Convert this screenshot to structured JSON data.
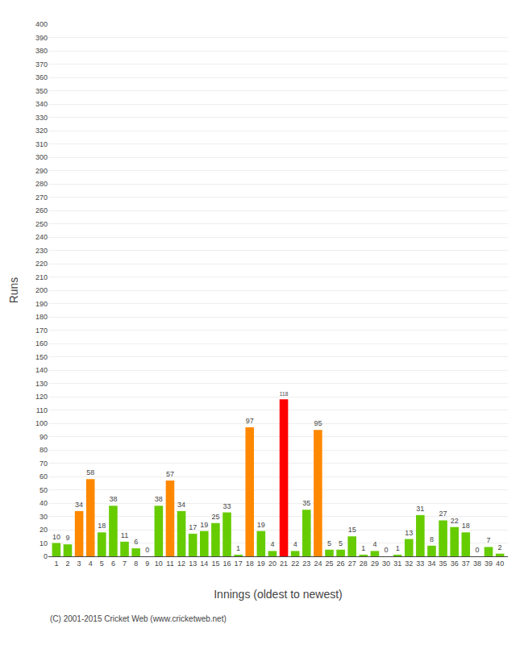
{
  "chart_data": {
    "type": "bar",
    "xlabel": "Innings (oldest to newest)",
    "ylabel": "Runs",
    "x": [
      1,
      2,
      3,
      4,
      5,
      6,
      7,
      8,
      9,
      10,
      11,
      12,
      13,
      14,
      15,
      16,
      17,
      18,
      19,
      20,
      21,
      22,
      23,
      24,
      25,
      26,
      27,
      28,
      29,
      30,
      31,
      32,
      33,
      34,
      35,
      36,
      37,
      38,
      39,
      40
    ],
    "values": [
      10,
      9,
      34,
      58,
      18,
      38,
      11,
      6,
      0,
      38,
      57,
      34,
      17,
      19,
      25,
      33,
      1,
      97,
      19,
      4,
      118,
      4,
      35,
      95,
      5,
      5,
      15,
      1,
      4,
      0,
      1,
      13,
      31,
      8,
      27,
      22,
      18,
      0,
      7,
      2
    ],
    "colors": [
      "#66cc00",
      "#66cc00",
      "#ff8800",
      "#ff8800",
      "#66cc00",
      "#66cc00",
      "#66cc00",
      "#66cc00",
      "#66cc00",
      "#66cc00",
      "#ff8800",
      "#66cc00",
      "#66cc00",
      "#66cc00",
      "#66cc00",
      "#66cc00",
      "#66cc00",
      "#ff8800",
      "#66cc00",
      "#66cc00",
      "#ff0000",
      "#66cc00",
      "#66cc00",
      "#ff8800",
      "#66cc00",
      "#66cc00",
      "#66cc00",
      "#66cc00",
      "#66cc00",
      "#66cc00",
      "#66cc00",
      "#66cc00",
      "#66cc00",
      "#66cc00",
      "#66cc00",
      "#66cc00",
      "#66cc00",
      "#66cc00",
      "#66cc00",
      "#66cc00"
    ],
    "xlim": [
      0.3,
      40.7
    ],
    "xticks": [
      1,
      2,
      3,
      4,
      5,
      6,
      7,
      8,
      9,
      10,
      11,
      12,
      13,
      14,
      15,
      16,
      17,
      18,
      19,
      20,
      21,
      22,
      23,
      24,
      25,
      26,
      27,
      28,
      29,
      30,
      31,
      32,
      33,
      34,
      35,
      36,
      37,
      38,
      39,
      40
    ],
    "ylim": [
      0,
      400
    ],
    "yticks": [
      0,
      10,
      20,
      30,
      40,
      50,
      60,
      70,
      80,
      90,
      100,
      110,
      120,
      130,
      140,
      150,
      160,
      170,
      180,
      190,
      200,
      210,
      220,
      230,
      240,
      250,
      260,
      270,
      280,
      290,
      300,
      310,
      320,
      330,
      340,
      350,
      360,
      370,
      380,
      390,
      400
    ],
    "grid": "y",
    "data_labels": true,
    "annotations": [
      "(C) 2001-2015 Cricket Web (www.cricketweb.net)"
    ]
  }
}
